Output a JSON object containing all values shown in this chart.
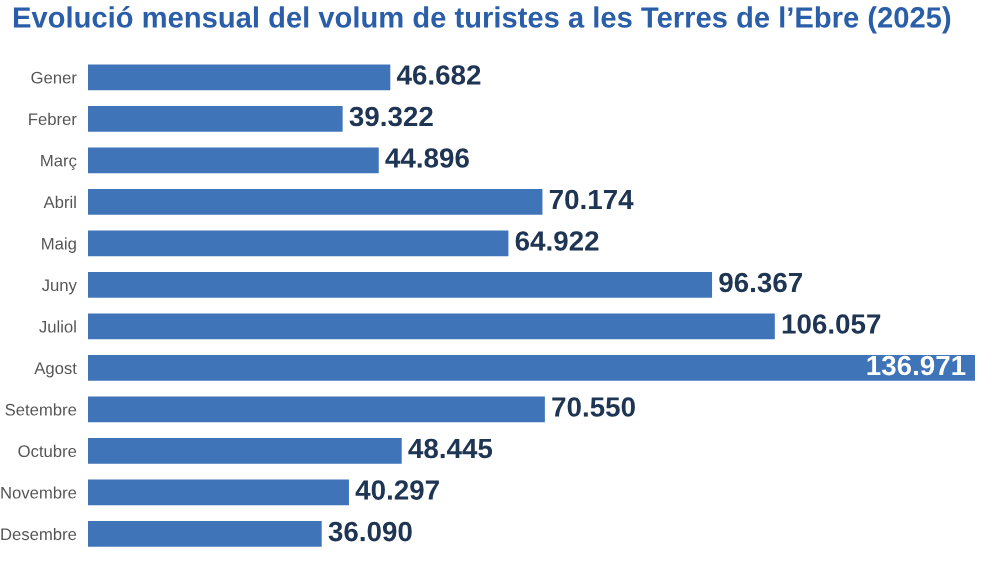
{
  "chart_data": {
    "type": "bar",
    "orientation": "horizontal",
    "title": "Evolució mensual del volum de turistes a les Terres de l’Ebre (2025)",
    "categories": [
      "Gener",
      "Febrer",
      "Març",
      "Abril",
      "Maig",
      "Juny",
      "Juliol",
      "Agost",
      "Setembre",
      "Octubre",
      "Novembre",
      "Desembre"
    ],
    "values": [
      46682,
      39322,
      44896,
      70174,
      64922,
      96367,
      106057,
      136971,
      70550,
      48445,
      40297,
      36090
    ],
    "value_labels": [
      "46.682",
      "39.322",
      "44.896",
      "70.174",
      "64.922",
      "96.367",
      "106.057",
      "136.971",
      "70.550",
      "48.445",
      "40.297",
      "36.090"
    ],
    "color": "#3f74b8",
    "grid": false,
    "legend": false
  }
}
